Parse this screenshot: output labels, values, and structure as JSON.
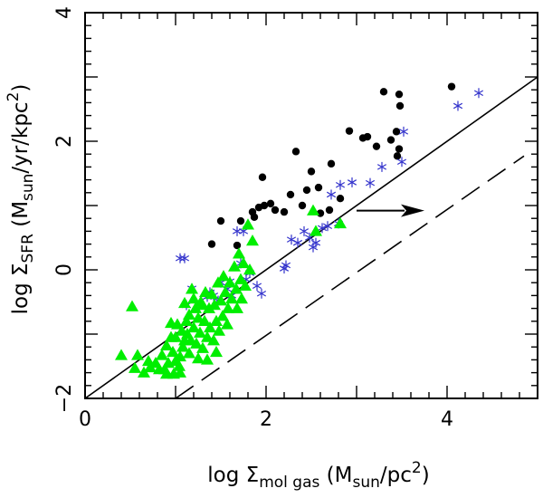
{
  "chart_data": {
    "type": "scatter",
    "title": "",
    "xlabel": {
      "prefix": "log Σ",
      "sub": "mol gas",
      "mid": " (M",
      "unit_sub": "sun",
      "suffix": "/pc",
      "sup": "2",
      "close": ")"
    },
    "ylabel": {
      "prefix": "log Σ",
      "sub": "SFR",
      "mid": " (M",
      "unit_sub": "sun",
      "suffix": "/yr/kpc",
      "sup": "2",
      "close": ")"
    },
    "xlim": [
      0,
      5
    ],
    "ylim": [
      -2,
      4
    ],
    "x_ticks": [
      {
        "value": 0,
        "label": "0"
      },
      {
        "value": 2,
        "label": "2"
      },
      {
        "value": 4,
        "label": "4"
      }
    ],
    "y_ticks": [
      {
        "value": -2,
        "label": "−2"
      },
      {
        "value": 0,
        "label": "0"
      },
      {
        "value": 2,
        "label": "2"
      },
      {
        "value": 4,
        "label": "4"
      }
    ],
    "lines": [
      {
        "name": "solid-relation",
        "style": "solid",
        "color": "#000000",
        "x": [
          0,
          5
        ],
        "y": [
          -2,
          3
        ]
      },
      {
        "name": "dashed-relation",
        "style": "dashed",
        "color": "#000000",
        "x": [
          1,
          4.85
        ],
        "y": [
          -2,
          1.77
        ]
      }
    ],
    "arrow": {
      "x0": 3.0,
      "y0": 0.92,
      "x1": 3.75,
      "y1": 0.92,
      "color": "#000000"
    },
    "series": [
      {
        "name": "black-circles",
        "marker": "circle",
        "color": "#000000",
        "points": [
          [
            1.4,
            0.4
          ],
          [
            1.5,
            0.76
          ],
          [
            1.68,
            0.38
          ],
          [
            1.72,
            0.76
          ],
          [
            1.85,
            0.9
          ],
          [
            1.87,
            0.82
          ],
          [
            1.92,
            0.97
          ],
          [
            1.96,
            1.44
          ],
          [
            1.98,
            1.0
          ],
          [
            2.05,
            1.03
          ],
          [
            2.1,
            0.93
          ],
          [
            2.2,
            0.9
          ],
          [
            2.27,
            1.17
          ],
          [
            2.33,
            1.84
          ],
          [
            2.4,
            1.0
          ],
          [
            2.45,
            1.24
          ],
          [
            2.5,
            1.53
          ],
          [
            2.58,
            1.28
          ],
          [
            2.6,
            0.88
          ],
          [
            2.7,
            0.93
          ],
          [
            2.72,
            1.65
          ],
          [
            2.82,
            1.11
          ],
          [
            2.92,
            2.16
          ],
          [
            3.07,
            2.05
          ],
          [
            3.12,
            2.07
          ],
          [
            3.22,
            1.92
          ],
          [
            3.3,
            2.77
          ],
          [
            3.38,
            2.02
          ],
          [
            3.45,
            1.77
          ],
          [
            3.47,
            2.73
          ],
          [
            3.48,
            2.55
          ],
          [
            3.44,
            2.15
          ],
          [
            3.47,
            1.88
          ],
          [
            4.05,
            2.85
          ]
        ]
      },
      {
        "name": "blue-asterisks",
        "marker": "asterisk",
        "color": "#3333cc",
        "points": [
          [
            1.05,
            0.18
          ],
          [
            1.1,
            0.18
          ],
          [
            1.18,
            -0.29
          ],
          [
            1.12,
            -0.55
          ],
          [
            1.35,
            -0.42
          ],
          [
            1.38,
            -0.35
          ],
          [
            1.42,
            -0.4
          ],
          [
            1.47,
            -0.48
          ],
          [
            1.5,
            -0.2
          ],
          [
            1.57,
            -0.3
          ],
          [
            1.6,
            -0.18
          ],
          [
            1.62,
            -0.4
          ],
          [
            1.68,
            0.6
          ],
          [
            1.72,
            0.1
          ],
          [
            1.75,
            0.6
          ],
          [
            1.78,
            -0.15
          ],
          [
            1.82,
            -0.05
          ],
          [
            1.9,
            -0.25
          ],
          [
            1.95,
            -0.37
          ],
          [
            2.2,
            0.02
          ],
          [
            2.22,
            0.07
          ],
          [
            2.28,
            0.47
          ],
          [
            2.35,
            0.42
          ],
          [
            2.42,
            0.6
          ],
          [
            2.48,
            0.5
          ],
          [
            2.52,
            0.35
          ],
          [
            2.55,
            0.42
          ],
          [
            2.62,
            0.65
          ],
          [
            2.68,
            0.68
          ],
          [
            2.72,
            1.17
          ],
          [
            2.8,
            0.72
          ],
          [
            2.82,
            1.32
          ],
          [
            2.95,
            1.36
          ],
          [
            3.15,
            1.35
          ],
          [
            3.28,
            1.6
          ],
          [
            3.5,
            1.68
          ],
          [
            3.52,
            2.15
          ],
          [
            4.12,
            2.55
          ],
          [
            4.35,
            2.75
          ]
        ]
      },
      {
        "name": "green-triangles",
        "marker": "triangle",
        "color": "#00ee00",
        "points": [
          [
            0.4,
            -1.33
          ],
          [
            0.55,
            -1.53
          ],
          [
            0.58,
            -1.33
          ],
          [
            0.52,
            -0.57
          ],
          [
            0.65,
            -1.6
          ],
          [
            0.7,
            -1.42
          ],
          [
            0.72,
            -1.52
          ],
          [
            0.78,
            -1.45
          ],
          [
            0.82,
            -1.55
          ],
          [
            0.85,
            -1.33
          ],
          [
            0.88,
            -1.55
          ],
          [
            0.9,
            -1.18
          ],
          [
            0.92,
            -1.45
          ],
          [
            0.95,
            -0.83
          ],
          [
            0.97,
            -1.28
          ],
          [
            1.0,
            -1.05
          ],
          [
            1.02,
            -0.85
          ],
          [
            1.04,
            -1.5
          ],
          [
            1.05,
            -1.35
          ],
          [
            1.07,
            -0.95
          ],
          [
            1.08,
            -1.2
          ],
          [
            1.1,
            -0.52
          ],
          [
            1.12,
            -0.8
          ],
          [
            1.13,
            -1.0
          ],
          [
            1.15,
            -0.7
          ],
          [
            1.17,
            -1.1
          ],
          [
            1.18,
            -0.3
          ],
          [
            1.2,
            -0.9
          ],
          [
            1.22,
            -0.6
          ],
          [
            1.23,
            -1.15
          ],
          [
            1.25,
            -0.75
          ],
          [
            1.27,
            -0.98
          ],
          [
            1.28,
            -0.5
          ],
          [
            1.3,
            -1.22
          ],
          [
            1.32,
            -0.8
          ],
          [
            1.33,
            -0.35
          ],
          [
            1.35,
            -1.05
          ],
          [
            1.37,
            -0.6
          ],
          [
            1.38,
            -0.9
          ],
          [
            1.4,
            -0.38
          ],
          [
            1.42,
            -1.1
          ],
          [
            1.43,
            -0.55
          ],
          [
            1.45,
            -0.8
          ],
          [
            1.47,
            -0.2
          ],
          [
            1.48,
            -0.95
          ],
          [
            1.5,
            -0.48
          ],
          [
            1.52,
            -0.72
          ],
          [
            1.53,
            -0.1
          ],
          [
            1.55,
            -0.35
          ],
          [
            1.57,
            -0.85
          ],
          [
            1.58,
            -0.6
          ],
          [
            1.6,
            -0.2
          ],
          [
            1.62,
            -0.45
          ],
          [
            1.65,
            0.05
          ],
          [
            1.67,
            -0.3
          ],
          [
            1.68,
            -0.6
          ],
          [
            1.7,
            0.25
          ],
          [
            1.72,
            -0.15
          ],
          [
            1.73,
            -0.45
          ],
          [
            1.75,
            0.1
          ],
          [
            1.77,
            -0.25
          ],
          [
            1.8,
            0.7
          ],
          [
            1.82,
            0.0
          ],
          [
            1.85,
            0.45
          ],
          [
            1.05,
            -1.6
          ],
          [
            1.0,
            -1.42
          ],
          [
            0.9,
            -1.62
          ],
          [
            0.98,
            -1.62
          ],
          [
            1.15,
            -1.3
          ],
          [
            1.25,
            -1.38
          ],
          [
            1.45,
            -1.28
          ],
          [
            1.35,
            -1.4
          ],
          [
            1.1,
            -1.1
          ],
          [
            0.95,
            -1.05
          ],
          [
            1.2,
            -0.45
          ],
          [
            1.3,
            -0.55
          ],
          [
            2.52,
            0.92
          ],
          [
            2.55,
            0.6
          ],
          [
            2.82,
            0.72
          ]
        ]
      }
    ]
  }
}
